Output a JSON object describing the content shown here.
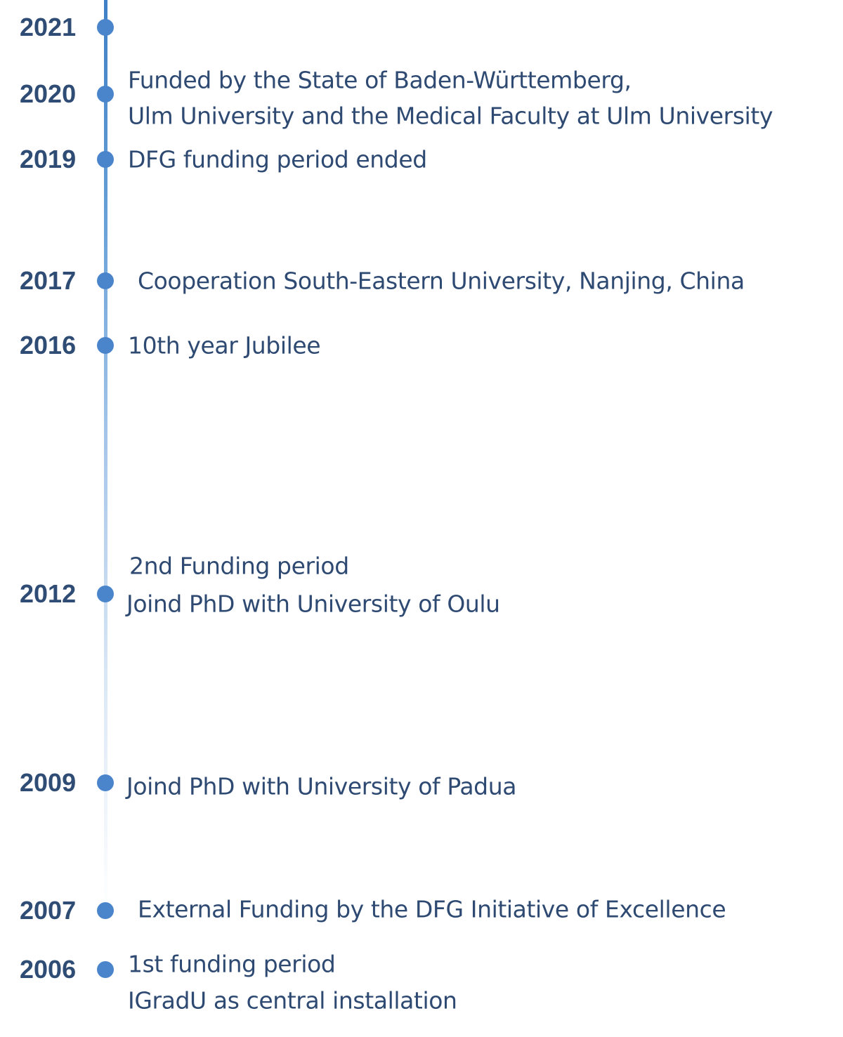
{
  "events": [
    {
      "year": "2021",
      "lines": []
    },
    {
      "year": "2020",
      "lines": [
        "Funded by the State of Baden-Württemberg,",
        "Ulm University and the Medical Faculty at Ulm University"
      ]
    },
    {
      "year": "2019",
      "lines": [
        "DFG funding period ended"
      ]
    },
    {
      "year": "2017",
      "lines": [
        "Cooperation South-Eastern University, Nanjing, China"
      ]
    },
    {
      "year": "2016",
      "lines": [
        "10th year Jubilee"
      ]
    },
    {
      "year": "2012",
      "lines": [
        "2nd Funding period",
        "Joind PhD with University of Oulu"
      ]
    },
    {
      "year": "2009",
      "lines": [
        "Joind PhD with University of Padua"
      ]
    },
    {
      "year": "2007",
      "lines": [
        "External Funding by the DFG Initiative of Excellence"
      ]
    },
    {
      "year": "2006",
      "lines": [
        "1st funding period",
        "IGradU as central installation"
      ]
    }
  ],
  "colors": {
    "axis": "#4a85cb",
    "year_text": "#2f4c74",
    "desc_text": "#2e4a72"
  }
}
